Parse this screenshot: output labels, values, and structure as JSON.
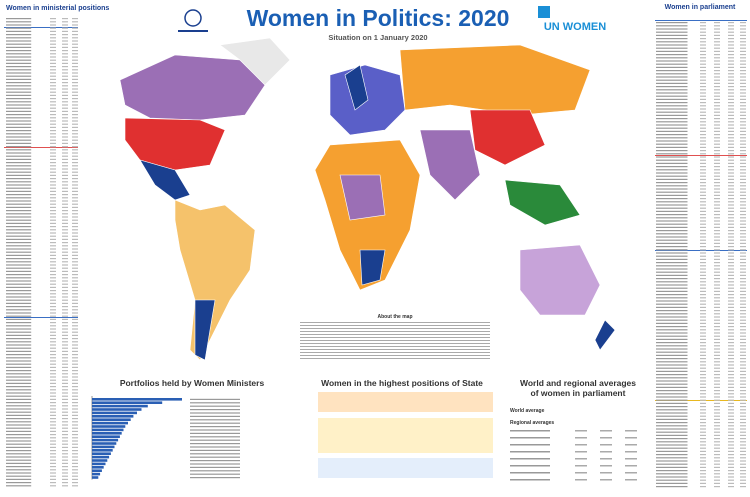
{
  "header": {
    "title": "Women in Politics: 2020",
    "subtitle": "Situation on 1 January 2020",
    "logo": "UN WOMEN"
  },
  "left_panel": {
    "title": "Women in ministerial positions"
  },
  "right_panel": {
    "title": "Women in parliament"
  },
  "map": {
    "about": "About the map"
  },
  "portfolios": {
    "title": "Portfolios held by Women Ministers",
    "values": [
      100,
      78,
      62,
      55,
      50,
      46,
      43,
      40,
      37,
      35,
      33,
      31,
      29,
      27,
      25,
      23,
      21,
      19,
      17,
      15,
      13,
      11,
      9,
      7
    ],
    "xlim": [
      0,
      100
    ]
  },
  "highest_positions": {
    "title": "Women in the highest positions of State"
  },
  "averages": {
    "title": "World and regional averages of women in parliament",
    "rows": [
      "World average",
      "Regional averages"
    ]
  }
}
